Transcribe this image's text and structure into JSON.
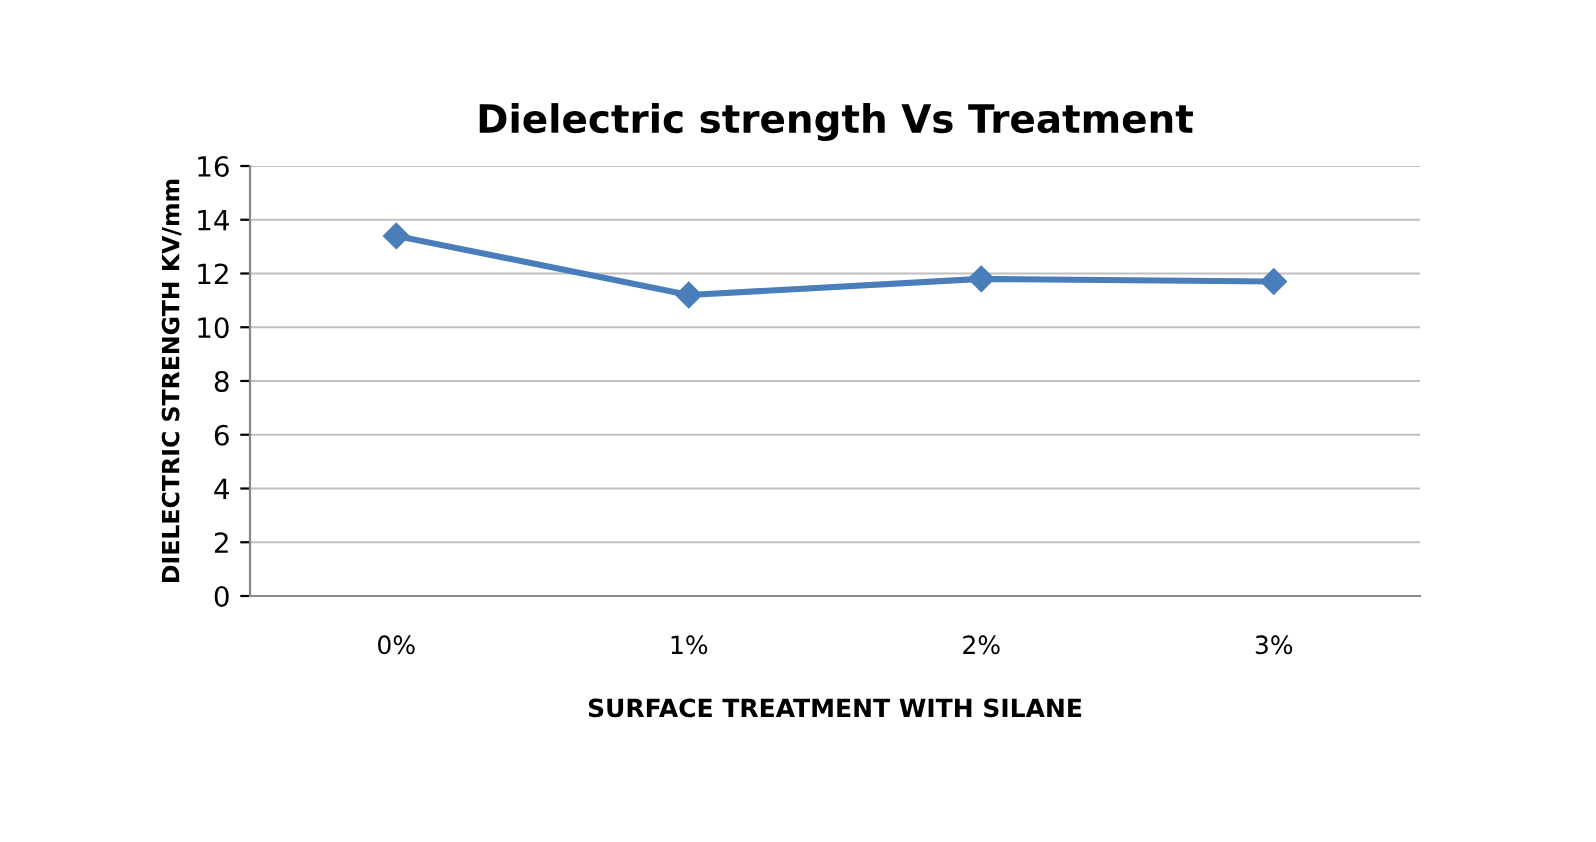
{
  "chart_data": {
    "type": "line",
    "title": "Dielectric strength Vs Treatment",
    "xlabel": "SURFACE TREATMENT WITH SILANE",
    "ylabel": "DIELECTRIC STRENGTH KV/mm",
    "categories": [
      "0%",
      "1%",
      "2%",
      "3%"
    ],
    "series": [
      {
        "color": "#4a7ebb",
        "values": [
          13.4,
          11.2,
          11.8,
          11.7
        ]
      }
    ],
    "ylim": [
      0,
      16
    ],
    "yticks": [
      0,
      2,
      4,
      6,
      8,
      10,
      12,
      14,
      16
    ],
    "grid": "y",
    "marker": "diamond",
    "line_style": "solid"
  }
}
